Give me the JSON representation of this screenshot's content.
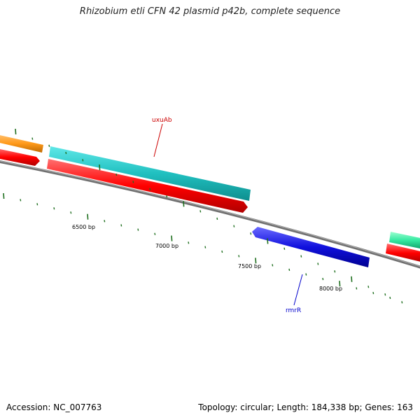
{
  "title": "Rhizobium etli CFN 42 plasmid p42b, complete sequence",
  "footer": {
    "accession": "Accession: NC_007763",
    "summary": "Topology: circular; Length: 184,338 bp; Genes: 163"
  },
  "scale_labels": [
    "6500 bp",
    "7000 bp",
    "7500 bp",
    "8000 bp"
  ],
  "genes": [
    {
      "label": "uxuAb",
      "color": "#cc0000"
    },
    {
      "label": "rmrR",
      "color": "#0000cc"
    }
  ],
  "colors": {
    "backbone": "#808080",
    "tick": "#1f6f1f",
    "cds": "#ff0000",
    "gene_teal": "#20c0c0",
    "gene_orange": "#ff9a1a",
    "gene_blue": "#1010dd",
    "gene_mint": "#33e8a0"
  }
}
